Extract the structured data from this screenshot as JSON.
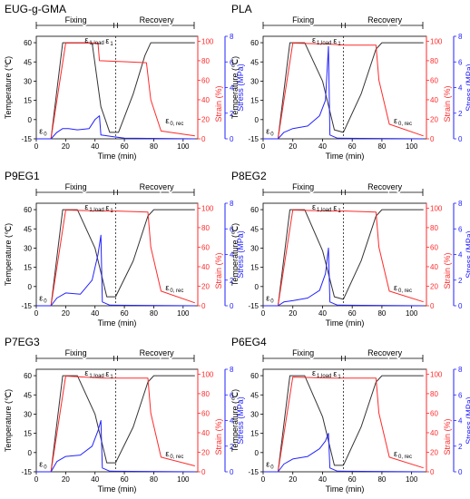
{
  "colors": {
    "temperature": "#333333",
    "strain": "#ff2a2a",
    "stress": "#2222ff",
    "axis": "#000000"
  },
  "shared": {
    "xlabel": "Time (min)",
    "ylabel_left": "Temperature (℃)",
    "ylabel_strain": "Strain (%)",
    "ylabel_stress": "Stress (MPa)",
    "phase_fixing": "Fixing",
    "phase_recovery": "Recovery",
    "label_eps0": "ε",
    "sub_eps0": "0",
    "label_eps1load": "ε",
    "sub_eps1load": "1,load",
    "label_eps1": "ε",
    "sub_eps1": "1",
    "label_eps0rec": "ε",
    "sub_eps0rec": "0, rec",
    "x_ticks": [
      0,
      20,
      40,
      60,
      80,
      100
    ],
    "temp_ticks": [
      -15,
      0,
      15,
      30,
      45,
      60
    ],
    "strain_ticks": [
      0,
      20,
      40,
      60,
      80,
      100
    ],
    "stress_ticks": [
      0,
      2,
      4,
      6,
      8
    ]
  },
  "chart_data": [
    {
      "type": "line",
      "title": "EUG-g-GMA",
      "xlim": [
        0,
        110
      ],
      "ylim_temp": [
        -15,
        65
      ],
      "ylim_strain": [
        0,
        105
      ],
      "ylim_stress": [
        0,
        8
      ],
      "phase_split": 54,
      "series": [
        {
          "name": "Temperature",
          "axis": "left",
          "x": [
            0,
            10,
            18,
            38,
            44,
            50,
            56,
            66,
            74,
            78,
            108
          ],
          "y": [
            -15,
            -15,
            60,
            60,
            10,
            -10,
            -10,
            20,
            50,
            60,
            60
          ]
        },
        {
          "name": "Strain",
          "axis": "strain",
          "x": [
            0,
            10,
            20,
            42,
            43,
            60,
            75,
            78,
            85,
            108
          ],
          "y": [
            0,
            0,
            98,
            98,
            80,
            79,
            78,
            40,
            8,
            3
          ]
        },
        {
          "name": "Stress",
          "axis": "stress",
          "x": [
            0,
            10,
            14,
            18,
            22,
            28,
            36,
            40,
            43,
            44,
            60,
            108
          ],
          "y": [
            0,
            0,
            0.5,
            0.8,
            0.8,
            0.7,
            0.8,
            1.5,
            1.8,
            0.3,
            0.05,
            0
          ]
        }
      ]
    },
    {
      "type": "line",
      "title": "PLA",
      "xlim": [
        0,
        110
      ],
      "ylim_temp": [
        -15,
        65
      ],
      "ylim_strain": [
        0,
        105
      ],
      "ylim_stress": [
        0,
        8
      ],
      "phase_split": 54,
      "series": [
        {
          "name": "Temperature",
          "axis": "left",
          "x": [
            0,
            10,
            18,
            28,
            40,
            48,
            54,
            66,
            76,
            80,
            108
          ],
          "y": [
            -15,
            -15,
            60,
            60,
            30,
            -8,
            -10,
            20,
            55,
            60,
            60
          ]
        },
        {
          "name": "Strain",
          "axis": "strain",
          "x": [
            0,
            10,
            20,
            45,
            55,
            76,
            78,
            85,
            108
          ],
          "y": [
            0,
            0,
            98,
            97,
            96,
            96,
            60,
            15,
            3
          ]
        },
        {
          "name": "Stress",
          "axis": "stress",
          "x": [
            0,
            10,
            14,
            20,
            30,
            38,
            42,
            44,
            45,
            50,
            108
          ],
          "y": [
            0,
            0,
            0.5,
            0.8,
            1.0,
            1.8,
            3.0,
            7.2,
            0.3,
            0.05,
            0
          ]
        }
      ]
    },
    {
      "type": "line",
      "title": "P9EG1",
      "xlim": [
        0,
        110
      ],
      "ylim_temp": [
        -15,
        65
      ],
      "ylim_strain": [
        0,
        105
      ],
      "ylim_stress": [
        0,
        8
      ],
      "phase_split": 54,
      "series": [
        {
          "name": "Temperature",
          "axis": "left",
          "x": [
            0,
            10,
            18,
            28,
            40,
            48,
            54,
            66,
            76,
            80,
            108
          ],
          "y": [
            -15,
            -15,
            60,
            60,
            30,
            -8,
            -8,
            20,
            55,
            60,
            60
          ]
        },
        {
          "name": "Strain",
          "axis": "strain",
          "x": [
            0,
            10,
            20,
            45,
            55,
            76,
            78,
            85,
            108
          ],
          "y": [
            0,
            0,
            98,
            97,
            97,
            96,
            60,
            15,
            3
          ]
        },
        {
          "name": "Stress",
          "axis": "stress",
          "x": [
            0,
            10,
            14,
            20,
            30,
            38,
            42,
            44,
            45,
            50,
            108
          ],
          "y": [
            0,
            0,
            0.6,
            1.0,
            0.9,
            2.0,
            4.0,
            5.5,
            0.3,
            0.05,
            0
          ]
        }
      ]
    },
    {
      "type": "line",
      "title": "P8EG2",
      "xlim": [
        0,
        110
      ],
      "ylim_temp": [
        -15,
        65
      ],
      "ylim_strain": [
        0,
        105
      ],
      "ylim_stress": [
        0,
        8
      ],
      "phase_split": 54,
      "series": [
        {
          "name": "Temperature",
          "axis": "left",
          "x": [
            0,
            10,
            18,
            28,
            40,
            48,
            54,
            66,
            76,
            80,
            108
          ],
          "y": [
            -15,
            -15,
            60,
            60,
            28,
            -8,
            -10,
            20,
            55,
            60,
            60
          ]
        },
        {
          "name": "Strain",
          "axis": "strain",
          "x": [
            0,
            10,
            20,
            45,
            55,
            76,
            78,
            85,
            108
          ],
          "y": [
            0,
            0,
            98,
            97,
            97,
            96,
            60,
            15,
            4
          ]
        },
        {
          "name": "Stress",
          "axis": "stress",
          "x": [
            0,
            10,
            14,
            20,
            30,
            38,
            42,
            44,
            45,
            50,
            108
          ],
          "y": [
            0,
            0,
            0.3,
            0.4,
            0.6,
            1.2,
            2.5,
            4.5,
            0.3,
            0.05,
            0
          ]
        }
      ]
    },
    {
      "type": "line",
      "title": "P7EG3",
      "xlim": [
        0,
        110
      ],
      "ylim_temp": [
        -15,
        65
      ],
      "ylim_strain": [
        0,
        105
      ],
      "ylim_stress": [
        0,
        8
      ],
      "phase_split": 54,
      "series": [
        {
          "name": "Temperature",
          "axis": "left",
          "x": [
            0,
            10,
            18,
            28,
            40,
            48,
            54,
            66,
            76,
            80,
            108
          ],
          "y": [
            -15,
            -15,
            60,
            60,
            30,
            -8,
            -8,
            20,
            55,
            60,
            60
          ]
        },
        {
          "name": "Strain",
          "axis": "strain",
          "x": [
            0,
            10,
            20,
            45,
            55,
            76,
            78,
            85,
            108
          ],
          "y": [
            0,
            0,
            98,
            96,
            96,
            96,
            60,
            15,
            6
          ]
        },
        {
          "name": "Stress",
          "axis": "stress",
          "x": [
            0,
            10,
            14,
            20,
            30,
            38,
            42,
            44,
            45,
            50,
            108
          ],
          "y": [
            0,
            0,
            0.8,
            1.2,
            1.3,
            2.0,
            3.2,
            4.0,
            0.3,
            0.05,
            0
          ]
        }
      ]
    },
    {
      "type": "line",
      "title": "P6EG4",
      "xlim": [
        0,
        110
      ],
      "ylim_temp": [
        -15,
        65
      ],
      "ylim_strain": [
        0,
        105
      ],
      "ylim_stress": [
        0,
        8
      ],
      "phase_split": 54,
      "series": [
        {
          "name": "Temperature",
          "axis": "left",
          "x": [
            0,
            10,
            18,
            28,
            40,
            48,
            54,
            66,
            76,
            80,
            108
          ],
          "y": [
            -15,
            -15,
            60,
            60,
            28,
            -10,
            -10,
            20,
            55,
            60,
            60
          ]
        },
        {
          "name": "Strain",
          "axis": "strain",
          "x": [
            0,
            10,
            20,
            45,
            55,
            76,
            78,
            85,
            108
          ],
          "y": [
            0,
            0,
            97,
            96,
            96,
            96,
            60,
            15,
            4
          ]
        },
        {
          "name": "Stress",
          "axis": "stress",
          "x": [
            0,
            10,
            14,
            20,
            30,
            38,
            42,
            44,
            45,
            50,
            108
          ],
          "y": [
            0,
            0,
            0.6,
            1.0,
            1.2,
            1.8,
            2.4,
            3.0,
            0.3,
            0.05,
            0
          ]
        }
      ]
    }
  ]
}
